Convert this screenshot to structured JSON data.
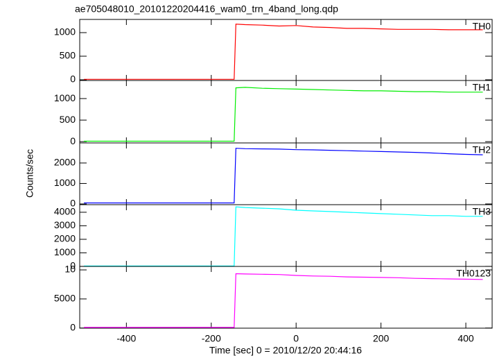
{
  "title": "ae705048010_20101220204416_wam0_trn_4band_long.qdp",
  "ylabel": "Counts/sec",
  "xlabel": "Time [sec] 0 = 2010/12/20 20:44:16",
  "chart_data": [
    {
      "type": "line",
      "xlim": [
        -510,
        462
      ],
      "xticks": [
        -400,
        -200,
        0,
        200,
        400
      ],
      "ylim": [
        -15,
        1280
      ],
      "yticks": [
        0,
        500,
        1000
      ],
      "x": [
        -500,
        -400,
        -300,
        -200,
        -146,
        -142,
        -120,
        -80,
        -40,
        0,
        40,
        80,
        120,
        160,
        200,
        240,
        280,
        320,
        360,
        400,
        440
      ],
      "series": [
        {
          "name": "TH0",
          "color": "#ff0000",
          "values": [
            10,
            10,
            10,
            10,
            10,
            1180,
            1170,
            1160,
            1140,
            1150,
            1120,
            1110,
            1090,
            1090,
            1080,
            1070,
            1070,
            1070,
            1060,
            1060,
            1060
          ]
        }
      ]
    },
    {
      "type": "line",
      "xlim": [
        -510,
        462
      ],
      "xticks": [
        -400,
        -200,
        0,
        200,
        400
      ],
      "ylim": [
        -30,
        1420
      ],
      "yticks": [
        0,
        500,
        1000
      ],
      "x": [
        -500,
        -400,
        -300,
        -200,
        -146,
        -142,
        -120,
        -80,
        -40,
        0,
        40,
        80,
        120,
        160,
        200,
        240,
        280,
        320,
        360,
        400,
        440
      ],
      "series": [
        {
          "name": "TH1",
          "color": "#00ee00",
          "values": [
            10,
            10,
            10,
            10,
            10,
            1250,
            1260,
            1240,
            1230,
            1220,
            1210,
            1200,
            1190,
            1180,
            1180,
            1170,
            1160,
            1160,
            1150,
            1150,
            1150
          ]
        }
      ]
    },
    {
      "type": "line",
      "xlim": [
        -510,
        462
      ],
      "xticks": [
        -400,
        -200,
        0,
        200,
        400
      ],
      "ylim": [
        -35,
        2980
      ],
      "yticks": [
        0,
        1000,
        2000
      ],
      "x": [
        -500,
        -400,
        -300,
        -200,
        -146,
        -142,
        -120,
        -80,
        -40,
        0,
        40,
        80,
        120,
        160,
        200,
        240,
        280,
        320,
        360,
        400,
        440
      ],
      "series": [
        {
          "name": "TH2",
          "color": "#0000ff",
          "values": [
            50,
            50,
            50,
            50,
            50,
            2720,
            2700,
            2690,
            2680,
            2650,
            2640,
            2620,
            2600,
            2580,
            2560,
            2540,
            2520,
            2490,
            2450,
            2420,
            2400
          ]
        }
      ]
    },
    {
      "type": "line",
      "xlim": [
        -510,
        462
      ],
      "xticks": [
        -400,
        -200,
        0,
        200,
        400
      ],
      "ylim": [
        -5,
        4560
      ],
      "yticks": [
        0,
        1000,
        2000,
        3000,
        4000
      ],
      "x": [
        -500,
        -400,
        -300,
        -200,
        -146,
        -142,
        -120,
        -80,
        -40,
        0,
        40,
        80,
        120,
        160,
        200,
        240,
        280,
        320,
        360,
        400,
        440
      ],
      "series": [
        {
          "name": "TH3",
          "color": "#00ffff",
          "values": [
            30,
            30,
            30,
            30,
            30,
            4400,
            4350,
            4300,
            4250,
            4150,
            4100,
            4050,
            4000,
            3950,
            3900,
            3850,
            3800,
            3750,
            3750,
            3700,
            3700
          ]
        }
      ]
    },
    {
      "type": "line",
      "xlim": [
        -510,
        462
      ],
      "xticks": [
        -400,
        -200,
        0,
        200,
        400
      ],
      "ylim": [
        -30,
        10600
      ],
      "yticks": [
        0,
        5000,
        {
          "value": 10000,
          "label": "10"
        }
      ],
      "x": [
        -500,
        -400,
        -300,
        -200,
        -146,
        -142,
        -120,
        -80,
        -40,
        0,
        40,
        80,
        120,
        160,
        200,
        240,
        280,
        320,
        360,
        400,
        440
      ],
      "series": [
        {
          "name": "TH0123",
          "color": "#ff00ff",
          "values": [
            100,
            100,
            100,
            100,
            100,
            9350,
            9300,
            9250,
            9200,
            9050,
            8950,
            8900,
            8800,
            8750,
            8700,
            8650,
            8550,
            8500,
            8450,
            8400,
            8350
          ]
        }
      ]
    }
  ]
}
